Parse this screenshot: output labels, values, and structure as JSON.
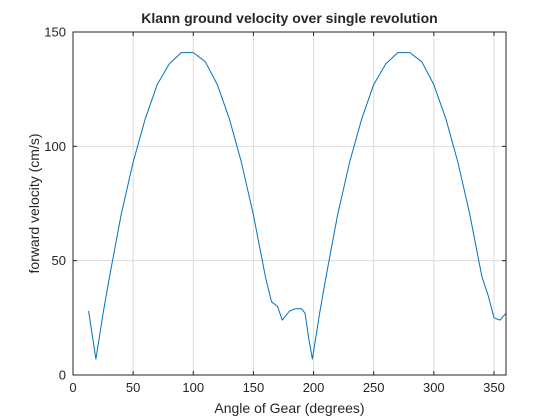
{
  "chart_data": {
    "type": "line",
    "title": "Klann ground velocity over single revolution",
    "xlabel": "Angle of Gear (degrees)",
    "ylabel": "forward velocity (cm/s)",
    "xlim": [
      0,
      360
    ],
    "ylim": [
      0,
      150
    ],
    "xticks": [
      0,
      50,
      100,
      150,
      200,
      250,
      300,
      350
    ],
    "yticks": [
      0,
      50,
      100,
      150
    ],
    "grid": true,
    "legend": "none",
    "series": [
      {
        "color": "#0072BD",
        "x": [
          13,
          19,
          25,
          30,
          40,
          50,
          60,
          70,
          80,
          90,
          100,
          110,
          120,
          130,
          140,
          150,
          160,
          165,
          170,
          174,
          180,
          185,
          190,
          193,
          196,
          199,
          205,
          210,
          220,
          230,
          240,
          250,
          260,
          270,
          280,
          290,
          300,
          310,
          320,
          330,
          340,
          345,
          350,
          355,
          360
        ],
        "y": [
          28,
          7,
          27,
          42,
          70,
          93,
          112,
          127,
          136,
          141,
          141,
          137,
          127,
          112,
          93,
          70,
          43,
          32,
          30,
          24,
          28,
          29,
          29,
          27,
          16,
          7,
          27,
          42,
          70,
          93,
          112,
          127,
          136,
          141,
          141,
          137,
          127,
          112,
          93,
          70,
          43,
          35,
          25,
          24,
          27
        ]
      }
    ]
  }
}
